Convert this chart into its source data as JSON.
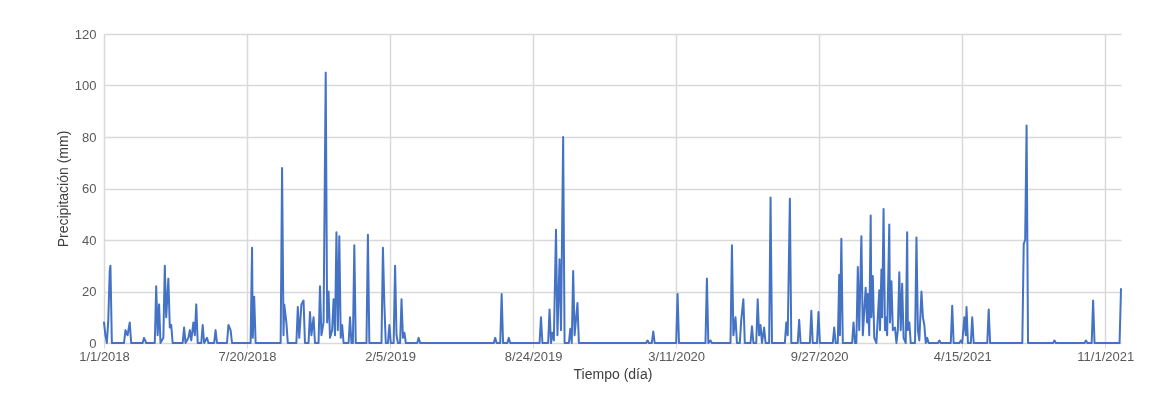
{
  "chart_data": {
    "type": "line",
    "xlabel": "Tiempo (día)",
    "ylabel": "Precipitación (mm)",
    "color": "#4472c4",
    "grid": true,
    "xlim": [
      "2018-01-01",
      "2021-11-23"
    ],
    "xticks": [
      {
        "value": "2018-01-01",
        "label": "1/1/2018"
      },
      {
        "value": "2018-07-20",
        "label": "7/20/2018"
      },
      {
        "value": "2019-02-05",
        "label": "2/5/2019"
      },
      {
        "value": "2019-08-24",
        "label": "8/24/2019"
      },
      {
        "value": "2020-03-11",
        "label": "3/11/2020"
      },
      {
        "value": "2020-09-27",
        "label": "9/27/2020"
      },
      {
        "value": "2021-04-15",
        "label": "4/15/2021"
      },
      {
        "value": "2021-11-01",
        "label": "11/1/2021"
      }
    ],
    "ylim": [
      0,
      120
    ],
    "yticks": [
      0,
      20,
      40,
      60,
      80,
      100,
      120
    ],
    "x": [
      "2018-01-01",
      "2018-01-03",
      "2018-01-05",
      "2018-01-07",
      "2018-01-09",
      "2018-01-10",
      "2018-01-12",
      "2018-01-29",
      "2018-01-31",
      "2018-02-03",
      "2018-02-06",
      "2018-02-08",
      "2018-02-24",
      "2018-02-26",
      "2018-03-01",
      "2018-03-13",
      "2018-03-15",
      "2018-03-17",
      "2018-03-19",
      "2018-03-21",
      "2018-03-25",
      "2018-03-27",
      "2018-03-29",
      "2018-04-01",
      "2018-04-03",
      "2018-04-05",
      "2018-04-07",
      "2018-04-21",
      "2018-04-23",
      "2018-04-25",
      "2018-04-29",
      "2018-05-01",
      "2018-05-03",
      "2018-05-06",
      "2018-05-08",
      "2018-05-10",
      "2018-05-12",
      "2018-05-17",
      "2018-05-19",
      "2018-05-21",
      "2018-05-25",
      "2018-05-27",
      "2018-06-04",
      "2018-06-06",
      "2018-06-08",
      "2018-06-22",
      "2018-06-24",
      "2018-06-27",
      "2018-06-29",
      "2018-07-25",
      "2018-07-27",
      "2018-07-28",
      "2018-07-30",
      "2018-08-01",
      "2018-09-05",
      "2018-09-07",
      "2018-09-09",
      "2018-09-10",
      "2018-09-13",
      "2018-09-15",
      "2018-09-27",
      "2018-09-29",
      "2018-10-01",
      "2018-10-04",
      "2018-10-07",
      "2018-10-09",
      "2018-10-14",
      "2018-10-16",
      "2018-10-18",
      "2018-10-21",
      "2018-10-23",
      "2018-10-28",
      "2018-10-30",
      "2018-11-01",
      "2018-11-04",
      "2018-11-07",
      "2018-11-09",
      "2018-11-11",
      "2018-11-13",
      "2018-11-16",
      "2018-11-18",
      "2018-11-20",
      "2018-11-22",
      "2018-11-24",
      "2018-11-26",
      "2018-11-28",
      "2018-11-30",
      "2018-12-02",
      "2018-12-09",
      "2018-12-11",
      "2018-12-13",
      "2018-12-15",
      "2018-12-17",
      "2018-12-19",
      "2019-01-03",
      "2019-01-05",
      "2019-01-07",
      "2019-01-24",
      "2019-01-26",
      "2019-01-28",
      "2019-01-30",
      "2019-02-02",
      "2019-02-04",
      "2019-02-06",
      "2019-02-10",
      "2019-02-12",
      "2019-02-14",
      "2019-02-16",
      "2019-02-19",
      "2019-02-21",
      "2019-02-23",
      "2019-02-25",
      "2019-02-27",
      "2019-03-15",
      "2019-03-17",
      "2019-03-19",
      "2019-06-30",
      "2019-07-02",
      "2019-07-04",
      "2019-07-09",
      "2019-07-11",
      "2019-07-13",
      "2019-07-19",
      "2019-07-21",
      "2019-07-23",
      "2019-09-02",
      "2019-09-04",
      "2019-09-06",
      "2019-09-14",
      "2019-09-16",
      "2019-09-18",
      "2019-09-20",
      "2019-09-22",
      "2019-09-25",
      "2019-09-27",
      "2019-09-30",
      "2019-10-02",
      "2019-10-05",
      "2019-10-07",
      "2019-10-13",
      "2019-10-15",
      "2019-10-17",
      "2019-10-19",
      "2019-10-21",
      "2019-10-25",
      "2019-10-27",
      "2020-01-29",
      "2020-01-31",
      "2020-02-02",
      "2020-02-06",
      "2020-02-08",
      "2020-02-10",
      "2020-03-11",
      "2020-03-13",
      "2020-03-15",
      "2020-04-21",
      "2020-04-23",
      "2020-04-25",
      "2020-04-28",
      "2020-04-30",
      "2020-05-26",
      "2020-05-28",
      "2020-05-30",
      "2020-06-02",
      "2020-06-04",
      "2020-06-08",
      "2020-06-10",
      "2020-06-13",
      "2020-06-15",
      "2020-06-23",
      "2020-06-25",
      "2020-06-27",
      "2020-07-01",
      "2020-07-03",
      "2020-07-05",
      "2020-07-07",
      "2020-07-09",
      "2020-07-12",
      "2020-07-14",
      "2020-07-19",
      "2020-07-21",
      "2020-07-23",
      "2020-08-10",
      "2020-08-12",
      "2020-08-14",
      "2020-08-17",
      "2020-08-19",
      "2020-08-28",
      "2020-08-30",
      "2020-09-01",
      "2020-09-14",
      "2020-09-16",
      "2020-09-18",
      "2020-09-24",
      "2020-09-26",
      "2020-09-28",
      "2020-10-16",
      "2020-10-18",
      "2020-10-20",
      "2020-10-23",
      "2020-10-25",
      "2020-10-26",
      "2020-10-28",
      "2020-10-30",
      "2020-11-12",
      "2020-11-14",
      "2020-11-16",
      "2020-11-18",
      "2020-11-20",
      "2020-11-22",
      "2020-11-25",
      "2020-11-27",
      "2020-12-01",
      "2020-12-03",
      "2020-12-04",
      "2020-12-06",
      "2020-12-08",
      "2020-12-09",
      "2020-12-11",
      "2020-12-13",
      "2020-12-16",
      "2020-12-20",
      "2020-12-21",
      "2020-12-23",
      "2020-12-24",
      "2020-12-26",
      "2020-12-28",
      "2020-12-29",
      "2020-12-31",
      "2021-01-03",
      "2021-01-04",
      "2021-01-06",
      "2021-01-08",
      "2021-01-11",
      "2021-01-13",
      "2021-01-15",
      "2021-01-17",
      "2021-01-19",
      "2021-01-21",
      "2021-01-23",
      "2021-01-26",
      "2021-01-28",
      "2021-01-29",
      "2021-01-31",
      "2021-02-02",
      "2021-02-08",
      "2021-02-10",
      "2021-02-12",
      "2021-02-14",
      "2021-02-17",
      "2021-02-19",
      "2021-02-21",
      "2021-02-23",
      "2021-02-25",
      "2021-02-27",
      "2021-03-12",
      "2021-03-14",
      "2021-03-16",
      "2021-03-30",
      "2021-04-01",
      "2021-04-03",
      "2021-04-11",
      "2021-04-13",
      "2021-04-15",
      "2021-04-18",
      "2021-04-20",
      "2021-04-21",
      "2021-04-23",
      "2021-04-27",
      "2021-04-29",
      "2021-05-01",
      "2021-05-20",
      "2021-05-22",
      "2021-05-24",
      "2021-07-08",
      "2021-07-10",
      "2021-07-12",
      "2021-07-14",
      "2021-07-16",
      "2021-08-20",
      "2021-08-22",
      "2021-08-24",
      "2021-10-03",
      "2021-10-05",
      "2021-10-07",
      "2021-10-13",
      "2021-10-15",
      "2021-10-17",
      "2021-11-21",
      "2021-11-23"
    ],
    "values": [
      8,
      3,
      0,
      9,
      28,
      30,
      0,
      0,
      5,
      3,
      8,
      0,
      0,
      2,
      0,
      0,
      22,
      3,
      15,
      0,
      2,
      30,
      10,
      25,
      6,
      7,
      0,
      0,
      6,
      0,
      2,
      5,
      1,
      8,
      3,
      15,
      0,
      0,
      7,
      0,
      2,
      0,
      0,
      5,
      0,
      0,
      7,
      5,
      0,
      0,
      37,
      2,
      18,
      0,
      0,
      68,
      3,
      15,
      8,
      0,
      0,
      14,
      2,
      15,
      16.5,
      0,
      0,
      12,
      3,
      10,
      0,
      0,
      22,
      3,
      8,
      105,
      8,
      20,
      2,
      5,
      17,
      3,
      43,
      5,
      41.5,
      2,
      7,
      0,
      0,
      10,
      0,
      0,
      38,
      0,
      0,
      42,
      0,
      0,
      37,
      15,
      0,
      0,
      7,
      0,
      0,
      30,
      3,
      0,
      0,
      17,
      2,
      4,
      0,
      0,
      2,
      0,
      0,
      2,
      0,
      0,
      19,
      0,
      0,
      2,
      0,
      0,
      10,
      0,
      0,
      13,
      0,
      4,
      1,
      44,
      3,
      32.5,
      5,
      80,
      0,
      0,
      5.5,
      0,
      28,
      3,
      15.5,
      0,
      0,
      1,
      0,
      0,
      4.5,
      0,
      0,
      19,
      0,
      0,
      25,
      0,
      1,
      0,
      0,
      38,
      3,
      10,
      0,
      0,
      9,
      17,
      0,
      0,
      6.5,
      0,
      0,
      17,
      3,
      7,
      0,
      6,
      0,
      0,
      56.5,
      0,
      0,
      8,
      3,
      56,
      0,
      0,
      9,
      0,
      0,
      12.5,
      0,
      0,
      12,
      0,
      0,
      6,
      0,
      0,
      26.5,
      3,
      40.5,
      0,
      0,
      8,
      0,
      0,
      29.5,
      5,
      41.5,
      3,
      21.5,
      8,
      19,
      3,
      49.5,
      10,
      26,
      2,
      0,
      20.5,
      5,
      28.5,
      10,
      52,
      5,
      10,
      3,
      46,
      8,
      24,
      5,
      6,
      0,
      5,
      27.5,
      5,
      23,
      2,
      0,
      43,
      5,
      8,
      0,
      0,
      41,
      5,
      1,
      20,
      10,
      7,
      0,
      2,
      0,
      0,
      1,
      0,
      0,
      14.5,
      0,
      0,
      1,
      0,
      10,
      3,
      14,
      0,
      0,
      10,
      0,
      0,
      13,
      0,
      0,
      38.5,
      40,
      84.5,
      0,
      0,
      1,
      0,
      0,
      1,
      0,
      0,
      16.5,
      0,
      0,
      21
    ]
  }
}
